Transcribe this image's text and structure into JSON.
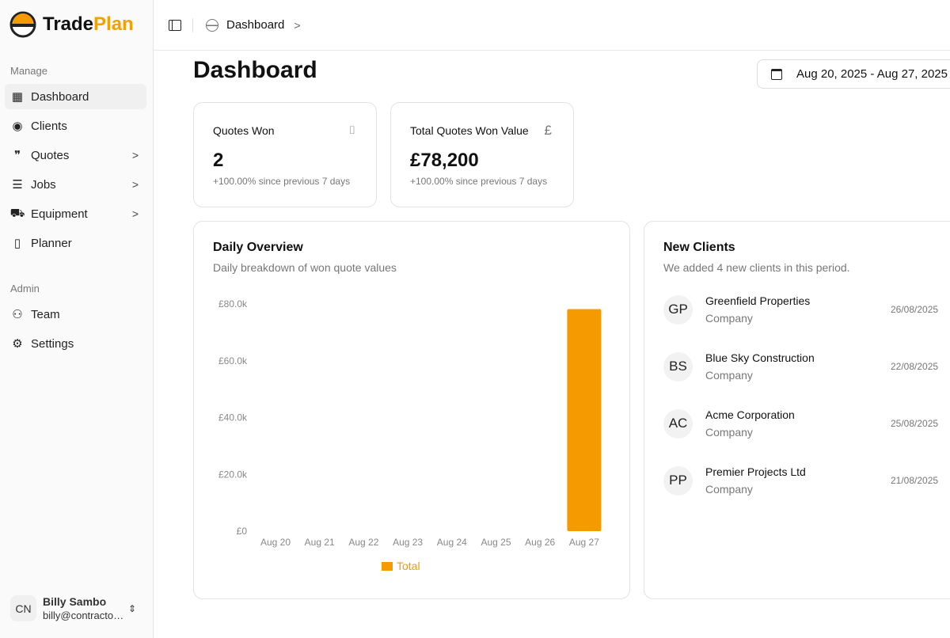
{
  "brand": {
    "name_part1": "Trade",
    "name_part2": "Plan",
    "accent": "#f59a00"
  },
  "sidebar": {
    "manage_label": "Manage",
    "items": [
      {
        "label": "Dashboard",
        "icon": "layout-dashboard-icon",
        "active": true
      },
      {
        "label": "Clients",
        "icon": "user-circle-icon"
      },
      {
        "label": "Quotes",
        "icon": "quote-icon",
        "chevron": true
      },
      {
        "label": "Jobs",
        "icon": "list-checks-icon",
        "chevron": true
      },
      {
        "label": "Equipment",
        "icon": "tractor-icon",
        "chevron": true
      },
      {
        "label": "Planner",
        "icon": "notebook-icon"
      }
    ],
    "admin_label": "Admin",
    "admin_items": [
      {
        "label": "Team",
        "icon": "users-icon"
      },
      {
        "label": "Settings",
        "icon": "gear-icon"
      }
    ],
    "user": {
      "initials": "CN",
      "name": "Billy Sambo",
      "email": "billy@contracto…"
    }
  },
  "header": {
    "breadcrumb": "Dashboard"
  },
  "main": {
    "title": "Dashboard",
    "date_range": "Aug 20, 2025 - Aug 27, 2025",
    "stats": [
      {
        "label": "Quotes Won",
        "value": "2",
        "change": "+100.00% since previous 7 days",
        "icon": "door-open-icon"
      },
      {
        "label": "Total Quotes Won Value",
        "value": "£78,200",
        "change": "+100.00% since previous 7 days",
        "icon": "pound-icon"
      }
    ],
    "overview": {
      "title": "Daily Overview",
      "subtitle": "Daily breakdown of won quote values"
    },
    "new_clients": {
      "title": "New Clients",
      "subtitle": "We added 4 new clients in this period.",
      "clients": [
        {
          "initials": "GP",
          "name": "Greenfield Properties",
          "type": "Company",
          "date": "26/08/2025"
        },
        {
          "initials": "BS",
          "name": "Blue Sky Construction",
          "type": "Company",
          "date": "22/08/2025"
        },
        {
          "initials": "AC",
          "name": "Acme Corporation",
          "type": "Company",
          "date": "25/08/2025"
        },
        {
          "initials": "PP",
          "name": "Premier Projects Ltd",
          "type": "Company",
          "date": "21/08/2025"
        }
      ]
    }
  },
  "chart_data": {
    "type": "bar",
    "categories": [
      "Aug 20",
      "Aug 21",
      "Aug 22",
      "Aug 23",
      "Aug 24",
      "Aug 25",
      "Aug 26",
      "Aug 27"
    ],
    "series": [
      {
        "name": "Total",
        "values": [
          0,
          0,
          0,
          0,
          0,
          0,
          0,
          78200
        ],
        "color": "#f59a00"
      }
    ],
    "yticks": [
      "£0",
      "£20.0k",
      "£40.0k",
      "£60.0k",
      "£80.0k"
    ],
    "ylim": [
      0,
      80000
    ],
    "legend": "bottom"
  }
}
